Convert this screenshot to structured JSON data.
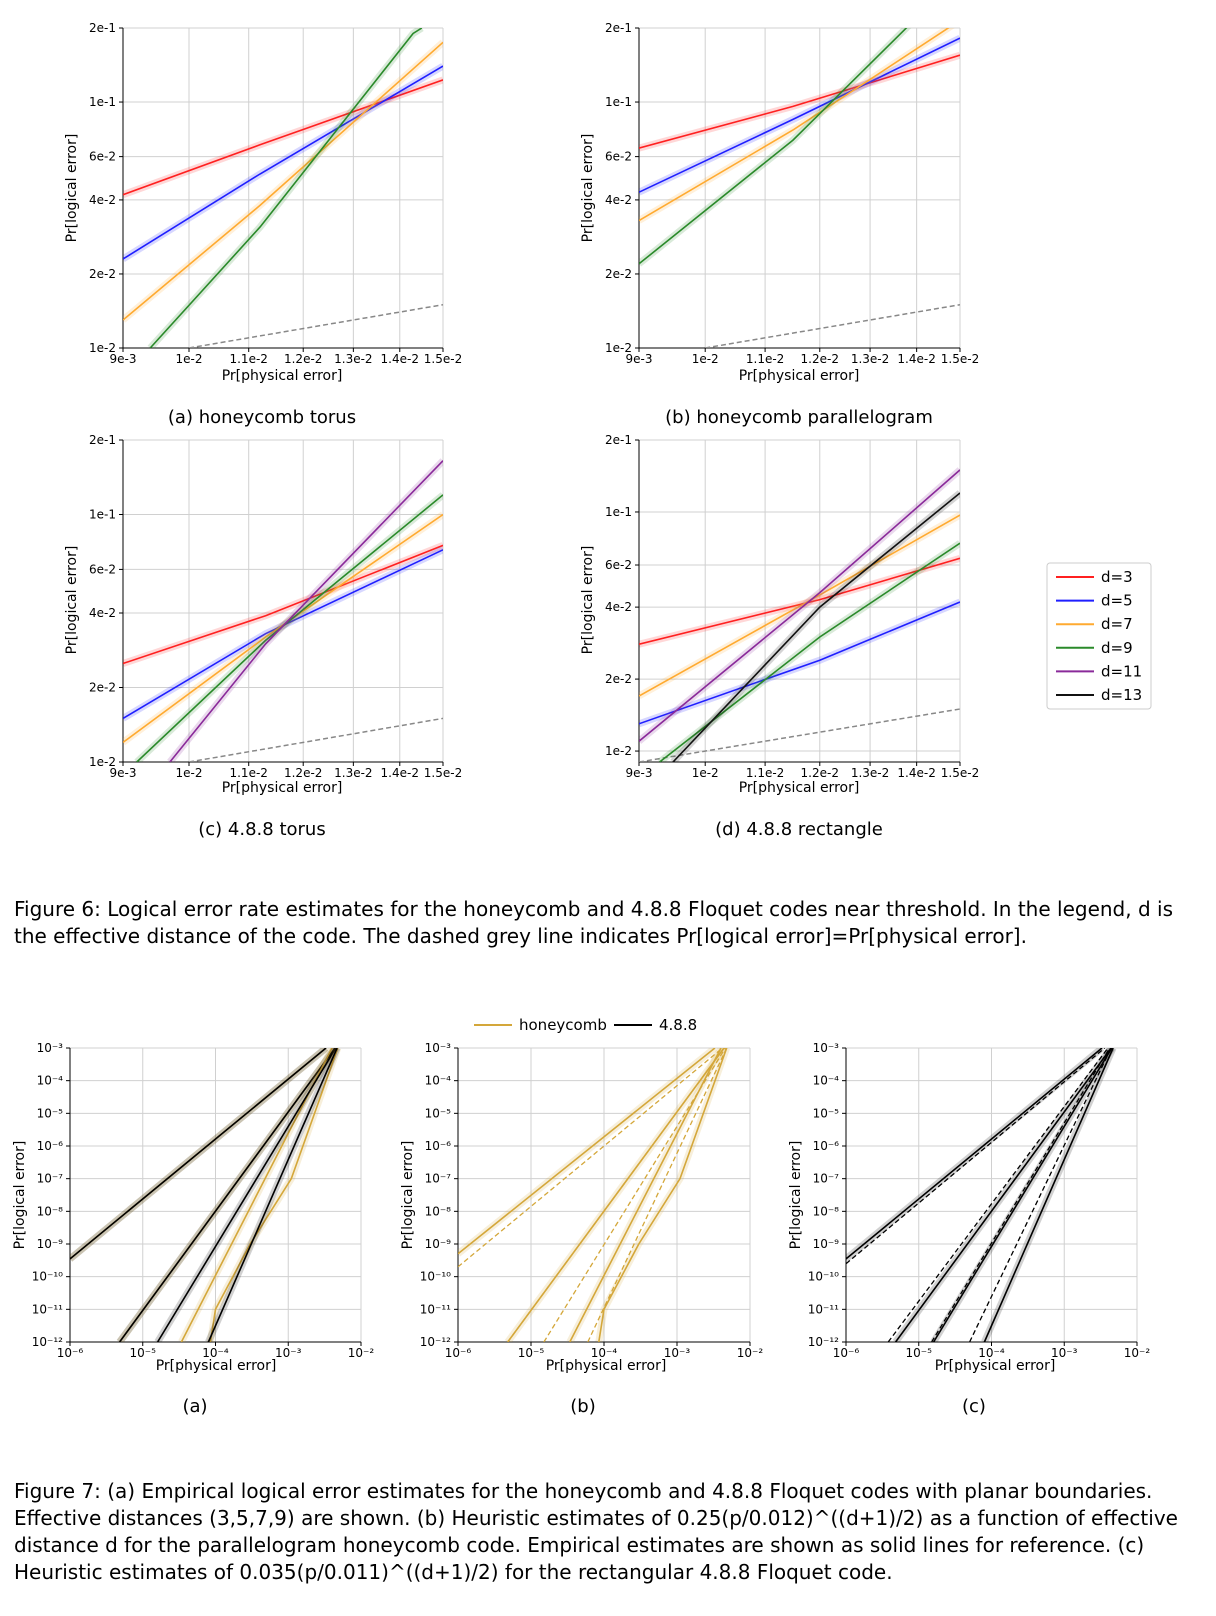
{
  "fig6": {
    "caption_label": "Figure 6:",
    "caption_text": "Logical error rate estimates for the honeycomb and 4.8.8 Floquet codes near threshold. In the legend, d is the effective distance of the code. The dashed grey line indicates Pr[logical error]=Pr[physical error].",
    "legend": [
      {
        "name": "d=3",
        "color": "#ff2020"
      },
      {
        "name": "d=5",
        "color": "#1f1fff"
      },
      {
        "name": "d=7",
        "color": "#ffaa30"
      },
      {
        "name": "d=9",
        "color": "#2a8a2a"
      },
      {
        "name": "d=11",
        "color": "#8a2a9a"
      },
      {
        "name": "d=13",
        "color": "#111111"
      }
    ]
  },
  "fig7": {
    "caption_label": "Figure 7:",
    "caption_text": "(a) Empirical logical error estimates for the honeycomb and 4.8.8 Floquet codes with planar boundaries. Effective distances (3,5,7,9) are shown. (b) Heuristic estimates of 0.25(p/0.012)^((d+1)/2) as a function of effective distance d for the parallelogram honeycomb code. Empirical estimates are shown as solid lines for reference. (c) Heuristic estimates of 0.035(p/0.011)^((d+1)/2) for the rectangular 4.8.8 Floquet code.",
    "legend": [
      {
        "name": "honeycomb",
        "color": "#d4a73a"
      },
      {
        "name": "4.8.8",
        "color": "#000000"
      }
    ]
  },
  "chart_data": [
    {
      "id": "6a",
      "type": "line",
      "subtitle": "(a) honeycomb torus",
      "xlabel": "Pr[physical error]",
      "ylabel": "Pr[logical error]",
      "xscale": "log",
      "yscale": "log",
      "xlim": [
        0.009,
        0.015
      ],
      "ylim": [
        0.01,
        0.2
      ],
      "xticks": [
        0.009,
        0.01,
        0.011,
        0.012,
        0.013,
        0.014,
        0.015
      ],
      "xticklabels": [
        "9e-3",
        "1e-2",
        "1.1e-2",
        "1.2e-2",
        "1.3e-2",
        "1.4e-2",
        "1.5e-2"
      ],
      "yticks": [
        0.01,
        0.02,
        0.04,
        0.06,
        0.1,
        0.2
      ],
      "yticklabels": [
        "1e-2",
        "2e-2",
        "4e-2",
        "6e-2",
        "1e-1",
        "2e-1"
      ],
      "grid": true,
      "series": [
        {
          "name": "d=3",
          "color": "#ff2020",
          "x": [
            0.009,
            0.0112,
            0.015
          ],
          "y": [
            0.042,
            0.067,
            0.123
          ]
        },
        {
          "name": "d=5",
          "color": "#1f1fff",
          "x": [
            0.009,
            0.0112,
            0.015
          ],
          "y": [
            0.023,
            0.051,
            0.14
          ]
        },
        {
          "name": "d=7",
          "color": "#ffaa30",
          "x": [
            0.009,
            0.0112,
            0.015
          ],
          "y": [
            0.013,
            0.038,
            0.175
          ]
        },
        {
          "name": "d=9",
          "color": "#2a8a2a",
          "x": [
            0.0094,
            0.0112,
            0.0143,
            0.0145
          ],
          "y": [
            0.01,
            0.031,
            0.19,
            0.2
          ]
        }
      ],
      "reference": {
        "x": [
          0.01,
          0.015
        ],
        "y": [
          0.01,
          0.015
        ]
      }
    },
    {
      "id": "6b",
      "type": "line",
      "subtitle": "(b) honeycomb parallelogram",
      "xlabel": "Pr[physical error]",
      "ylabel": "Pr[logical error]",
      "xscale": "log",
      "yscale": "log",
      "xlim": [
        0.009,
        0.015
      ],
      "ylim": [
        0.01,
        0.2
      ],
      "xticks": [
        0.009,
        0.01,
        0.011,
        0.012,
        0.013,
        0.014,
        0.015
      ],
      "xticklabels": [
        "9e-3",
        "1e-2",
        "1.1e-2",
        "1.2e-2",
        "1.3e-2",
        "1.4e-2",
        "1.5e-2"
      ],
      "yticks": [
        0.01,
        0.02,
        0.04,
        0.06,
        0.1,
        0.2
      ],
      "yticklabels": [
        "1e-2",
        "2e-2",
        "4e-2",
        "6e-2",
        "1e-1",
        "2e-1"
      ],
      "grid": true,
      "series": [
        {
          "name": "d=3",
          "color": "#ff2020",
          "x": [
            0.009,
            0.0115,
            0.015
          ],
          "y": [
            0.065,
            0.096,
            0.155
          ]
        },
        {
          "name": "d=5",
          "color": "#1f1fff",
          "x": [
            0.009,
            0.0115,
            0.015
          ],
          "y": [
            0.043,
            0.085,
            0.182
          ]
        },
        {
          "name": "d=7",
          "color": "#ffaa30",
          "x": [
            0.009,
            0.0115,
            0.015
          ],
          "y": [
            0.033,
            0.077,
            0.215
          ]
        },
        {
          "name": "d=9",
          "color": "#2a8a2a",
          "x": [
            0.009,
            0.0115,
            0.014
          ],
          "y": [
            0.022,
            0.07,
            0.22
          ]
        }
      ],
      "reference": {
        "x": [
          0.01,
          0.015
        ],
        "y": [
          0.01,
          0.015
        ]
      }
    },
    {
      "id": "6c",
      "type": "line",
      "subtitle": "(c) 4.8.8 torus",
      "xlabel": "Pr[physical error]",
      "ylabel": "Pr[logical error]",
      "xscale": "log",
      "yscale": "log",
      "xlim": [
        0.009,
        0.015
      ],
      "ylim": [
        0.01,
        0.2
      ],
      "xticks": [
        0.009,
        0.01,
        0.011,
        0.012,
        0.013,
        0.014,
        0.015
      ],
      "xticklabels": [
        "9e-3",
        "1e-2",
        "1.1e-2",
        "1.2e-2",
        "1.3e-2",
        "1.4e-2",
        "1.5e-2"
      ],
      "yticks": [
        0.01,
        0.02,
        0.04,
        0.06,
        0.1,
        0.2
      ],
      "yticklabels": [
        "1e-2",
        "2e-2",
        "4e-2",
        "6e-2",
        "1e-1",
        "2e-1"
      ],
      "grid": true,
      "series": [
        {
          "name": "d=3",
          "color": "#ff2020",
          "x": [
            0.009,
            0.0113,
            0.015
          ],
          "y": [
            0.025,
            0.039,
            0.075
          ]
        },
        {
          "name": "d=5",
          "color": "#1f1fff",
          "x": [
            0.009,
            0.0113,
            0.015
          ],
          "y": [
            0.015,
            0.033,
            0.072
          ]
        },
        {
          "name": "d=7",
          "color": "#ffaa30",
          "x": [
            0.009,
            0.0113,
            0.015
          ],
          "y": [
            0.012,
            0.032,
            0.1
          ]
        },
        {
          "name": "d=9",
          "color": "#2a8a2a",
          "x": [
            0.0092,
            0.0113,
            0.015
          ],
          "y": [
            0.01,
            0.031,
            0.12
          ]
        },
        {
          "name": "d=11",
          "color": "#8a2a9a",
          "x": [
            0.0097,
            0.0113,
            0.015
          ],
          "y": [
            0.01,
            0.03,
            0.165
          ]
        }
      ],
      "reference": {
        "x": [
          0.01,
          0.015
        ],
        "y": [
          0.01,
          0.015
        ]
      }
    },
    {
      "id": "6d",
      "type": "line",
      "subtitle": "(d) 4.8.8 rectangle",
      "xlabel": "Pr[physical error]",
      "ylabel": "Pr[logical error]",
      "xscale": "log",
      "yscale": "log",
      "xlim": [
        0.009,
        0.015
      ],
      "ylim": [
        0.009,
        0.2
      ],
      "xticks": [
        0.009,
        0.01,
        0.011,
        0.012,
        0.013,
        0.014,
        0.015
      ],
      "xticklabels": [
        "9e-3",
        "1e-2",
        "1.1e-2",
        "1.2e-2",
        "1.3e-2",
        "1.4e-2",
        "1.5e-2"
      ],
      "yticks": [
        0.01,
        0.02,
        0.04,
        0.06,
        0.1,
        0.2
      ],
      "yticklabels": [
        "1e-2",
        "2e-2",
        "4e-2",
        "6e-2",
        "1e-1",
        "2e-1"
      ],
      "grid": true,
      "series": [
        {
          "name": "d=3",
          "color": "#ff2020",
          "x": [
            0.009,
            0.012,
            0.015
          ],
          "y": [
            0.028,
            0.043,
            0.064
          ]
        },
        {
          "name": "d=5",
          "color": "#1f1fff",
          "x": [
            0.009,
            0.012,
            0.015
          ],
          "y": [
            0.013,
            0.024,
            0.042
          ]
        },
        {
          "name": "d=7",
          "color": "#ffaa30",
          "x": [
            0.009,
            0.012,
            0.015
          ],
          "y": [
            0.017,
            0.045,
            0.097
          ]
        },
        {
          "name": "d=9",
          "color": "#2a8a2a",
          "x": [
            0.0093,
            0.012,
            0.015
          ],
          "y": [
            0.009,
            0.03,
            0.074
          ]
        },
        {
          "name": "d=11",
          "color": "#8a2a9a",
          "x": [
            0.009,
            0.012,
            0.015
          ],
          "y": [
            0.011,
            0.046,
            0.15
          ]
        },
        {
          "name": "d=13",
          "color": "#111111",
          "x": [
            0.0095,
            0.012,
            0.015
          ],
          "y": [
            0.009,
            0.04,
            0.12
          ]
        }
      ],
      "reference": {
        "x": [
          0.009,
          0.015
        ],
        "y": [
          0.009,
          0.015
        ]
      }
    },
    {
      "id": "7a",
      "type": "line",
      "subtitle": "(a)",
      "xlabel": "Pr[physical error]",
      "ylabel": "Pr[logical error]",
      "xscale": "log",
      "yscale": "log",
      "xlim": [
        1e-06,
        0.01
      ],
      "ylim": [
        1e-12,
        0.001
      ],
      "xticks": [
        1e-06,
        1e-05,
        0.0001,
        0.001,
        0.01
      ],
      "xticklabels": [
        "10⁻⁶",
        "10⁻⁵",
        "10⁻⁴",
        "10⁻³",
        "10⁻²"
      ],
      "yticks": [
        1e-12,
        1e-11,
        1e-10,
        1e-09,
        1e-08,
        1e-07,
        1e-06,
        1e-05,
        0.0001,
        0.001
      ],
      "yticklabels": [
        "10⁻¹²",
        "10⁻¹¹",
        "10⁻¹⁰",
        "10⁻⁹",
        "10⁻⁸",
        "10⁻⁷",
        "10⁻⁶",
        "10⁻⁵",
        "10⁻⁴",
        "10⁻³"
      ],
      "grid": true,
      "series": [
        {
          "name": "honeycomb",
          "color": "#d4a73a",
          "x": [
            1e-06,
            0.0033
          ],
          "y": [
            3.5e-10,
            0.001
          ]
        },
        {
          "name": "4.8.8",
          "color": "#000000",
          "x": [
            1e-06,
            0.0033
          ],
          "y": [
            3.5e-10,
            0.001
          ]
        },
        {
          "name": "honeycomb",
          "color": "#d4a73a",
          "x": [
            4.8e-06,
            0.0044
          ],
          "y": [
            1e-12,
            0.001
          ]
        },
        {
          "name": "4.8.8",
          "color": "#000000",
          "x": [
            4.8e-06,
            0.0044
          ],
          "y": [
            1e-12,
            0.001
          ]
        },
        {
          "name": "honeycomb",
          "color": "#d4a73a",
          "x": [
            3.4e-05,
            0.004
          ],
          "y": [
            1e-12,
            0.001
          ]
        },
        {
          "name": "4.8.8",
          "color": "#000000",
          "x": [
            1.6e-05,
            0.0045
          ],
          "y": [
            1e-12,
            0.001
          ]
        },
        {
          "name": "honeycomb",
          "color": "#d4a73a",
          "x": [
            8.5e-05,
            0.0001,
            0.0003,
            0.0011,
            0.0048
          ],
          "y": [
            1e-12,
            1e-11,
            1e-09,
            1e-07,
            0.001
          ]
        },
        {
          "name": "4.8.8",
          "color": "#000000",
          "x": [
            8e-05,
            0.0047
          ],
          "y": [
            1e-12,
            0.001
          ]
        }
      ]
    },
    {
      "id": "7b",
      "type": "line",
      "subtitle": "(b)",
      "xlabel": "Pr[physical error]",
      "ylabel": "Pr[logical error]",
      "xscale": "log",
      "yscale": "log",
      "xlim": [
        1e-06,
        0.01
      ],
      "ylim": [
        1e-12,
        0.001
      ],
      "xticks": [
        1e-06,
        1e-05,
        0.0001,
        0.001,
        0.01
      ],
      "xticklabels": [
        "10⁻⁶",
        "10⁻⁵",
        "10⁻⁴",
        "10⁻³",
        "10⁻²"
      ],
      "yticks": [
        1e-12,
        1e-11,
        1e-10,
        1e-09,
        1e-08,
        1e-07,
        1e-06,
        1e-05,
        0.0001,
        0.001
      ],
      "yticklabels": [
        "10⁻¹²",
        "10⁻¹¹",
        "10⁻¹⁰",
        "10⁻⁹",
        "10⁻⁸",
        "10⁻⁷",
        "10⁻⁶",
        "10⁻⁵",
        "10⁻⁴",
        "10⁻³"
      ],
      "grid": true,
      "series": [
        {
          "name": "honeycomb",
          "color": "#d4a73a",
          "x": [
            1e-06,
            0.0033
          ],
          "y": [
            5e-10,
            0.001
          ]
        },
        {
          "name": "honeycomb",
          "color": "#d4a73a",
          "x": [
            4.8e-06,
            0.0044
          ],
          "y": [
            1e-12,
            0.001
          ]
        },
        {
          "name": "honeycomb",
          "color": "#d4a73a",
          "x": [
            3.4e-05,
            0.004
          ],
          "y": [
            1e-12,
            0.001
          ]
        },
        {
          "name": "honeycomb",
          "color": "#d4a73a",
          "x": [
            8.5e-05,
            0.0001,
            0.0003,
            0.0011,
            0.0048
          ],
          "y": [
            1e-12,
            1e-11,
            1e-09,
            1e-07,
            0.001
          ]
        }
      ],
      "heuristic": [
        {
          "x": [
            1e-06,
            0.0042
          ],
          "y": [
            2e-10,
            0.001
          ],
          "color": "#d4a73a"
        },
        {
          "x": [
            4.8e-06,
            0.0044
          ],
          "y": [
            1e-12,
            0.001
          ],
          "color": "#d4a73a"
        },
        {
          "x": [
            1.5e-05,
            0.0046
          ],
          "y": [
            1e-12,
            0.001
          ],
          "color": "#d4a73a"
        },
        {
          "x": [
            6e-05,
            0.0048
          ],
          "y": [
            1e-12,
            0.001
          ],
          "color": "#d4a73a"
        }
      ]
    },
    {
      "id": "7c",
      "type": "line",
      "subtitle": "(c)",
      "xlabel": "Pr[physical error]",
      "ylabel": "Pr[logical error]",
      "xscale": "log",
      "yscale": "log",
      "xlim": [
        1e-06,
        0.01
      ],
      "ylim": [
        1e-12,
        0.001
      ],
      "xticks": [
        1e-06,
        1e-05,
        0.0001,
        0.001,
        0.01
      ],
      "xticklabels": [
        "10⁻⁶",
        "10⁻⁵",
        "10⁻⁴",
        "10⁻³",
        "10⁻²"
      ],
      "yticks": [
        1e-12,
        1e-11,
        1e-10,
        1e-09,
        1e-08,
        1e-07,
        1e-06,
        1e-05,
        0.0001,
        0.001
      ],
      "yticklabels": [
        "10⁻¹²",
        "10⁻¹¹",
        "10⁻¹⁰",
        "10⁻⁹",
        "10⁻⁸",
        "10⁻⁷",
        "10⁻⁶",
        "10⁻⁵",
        "10⁻⁴",
        "10⁻³"
      ],
      "grid": true,
      "series": [
        {
          "name": "4.8.8",
          "color": "#000000",
          "x": [
            1e-06,
            0.0033
          ],
          "y": [
            3.5e-10,
            0.001
          ]
        },
        {
          "name": "4.8.8",
          "color": "#000000",
          "x": [
            4.8e-06,
            0.0044
          ],
          "y": [
            1e-12,
            0.001
          ]
        },
        {
          "name": "4.8.8",
          "color": "#000000",
          "x": [
            1.6e-05,
            0.0045
          ],
          "y": [
            1e-12,
            0.001
          ]
        },
        {
          "name": "4.8.8",
          "color": "#000000",
          "x": [
            8e-05,
            0.0047
          ],
          "y": [
            1e-12,
            0.001
          ]
        }
      ],
      "heuristic": [
        {
          "x": [
            1e-06,
            0.0036
          ],
          "y": [
            2.5e-10,
            0.001
          ],
          "color": "#000000"
        },
        {
          "x": [
            3.8e-06,
            0.004
          ],
          "y": [
            1e-12,
            0.001
          ],
          "color": "#000000"
        },
        {
          "x": [
            1.5e-05,
            0.0042
          ],
          "y": [
            1e-12,
            0.001
          ],
          "color": "#000000"
        },
        {
          "x": [
            5e-05,
            0.0044
          ],
          "y": [
            1e-12,
            0.001
          ],
          "color": "#000000"
        }
      ]
    }
  ]
}
